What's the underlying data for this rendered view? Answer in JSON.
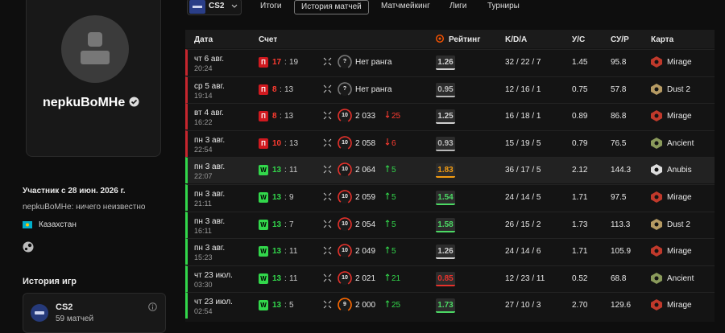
{
  "profile": {
    "nickname": "nepkuBoMHe",
    "member_since": "Участник с 28 июн. 2026 г.",
    "bio": "nepkuBoMHe: ничего неизвестно",
    "country": "Казахстан"
  },
  "game_history": {
    "title": "История игр",
    "game": "CS2",
    "matches": "59 матчей"
  },
  "nav": {
    "game": "CS2",
    "tabs": [
      "Итоги",
      "История матчей",
      "Матчмейкинг",
      "Лиги",
      "Турниры"
    ],
    "active_tab": 1
  },
  "table": {
    "headers": [
      "Дата",
      "Счет",
      "Рейтинг",
      "K/D/A",
      "У/С",
      "СУ/Р",
      "Карта"
    ],
    "rows": [
      {
        "win": false,
        "date": "чт 6 авг.",
        "time": "20:24",
        "result": "П",
        "own": "17",
        "sep": ":",
        "opp": "19",
        "level": "?",
        "level_color": "#777",
        "elo": "Нет ранга",
        "rating": "1.26",
        "rating_color": "#d0d0d0",
        "kda": "32 / 22 / 7",
        "kd": "1.45",
        "adr": "95.8",
        "map": "Mirage",
        "map_color": "#c0392b"
      },
      {
        "win": false,
        "date": "ср 5 авг.",
        "time": "19:14",
        "result": "П",
        "own": "8",
        "sep": ":",
        "opp": "13",
        "level": "?",
        "level_color": "#777",
        "elo": "Нет ранга",
        "rating": "0.95",
        "rating_color": "#b8b8b8",
        "kda": "12 / 16 / 1",
        "kd": "0.75",
        "adr": "57.8",
        "map": "Dust 2",
        "map_color": "#b59a63"
      },
      {
        "win": false,
        "date": "вт 4 авг.",
        "time": "16:22",
        "result": "П",
        "own": "8",
        "sep": ":",
        "opp": "13",
        "level": "10",
        "level_color": "#e5312b",
        "elo": "2 033",
        "change": "25",
        "rating": "1.25",
        "rating_color": "#d0d0d0",
        "kda": "16 / 18 / 1",
        "kd": "0.89",
        "adr": "86.8",
        "map": "Mirage",
        "map_color": "#c0392b"
      },
      {
        "win": false,
        "date": "пн 3 авг.",
        "time": "22:54",
        "result": "П",
        "own": "10",
        "sep": ":",
        "opp": "13",
        "level": "10",
        "level_color": "#e5312b",
        "elo": "2 058",
        "change": "6",
        "rating": "0.93",
        "rating_color": "#b8b8b8",
        "kda": "15 / 19 / 5",
        "kd": "0.79",
        "adr": "76.5",
        "map": "Ancient",
        "map_color": "#8a9a5b"
      },
      {
        "win": true,
        "date": "пн 3 авг.",
        "time": "22:07",
        "result": "W",
        "own": "13",
        "sep": ":",
        "opp": "11",
        "level": "10",
        "level_color": "#e5312b",
        "elo": "2 064",
        "change": "5",
        "rating": "1.83",
        "rating_color": "#f39c12",
        "kda": "36 / 17 / 5",
        "kd": "2.12",
        "adr": "144.3",
        "map": "Anubis",
        "map_color": "#dddddd"
      },
      {
        "win": true,
        "date": "пн 3 авг.",
        "time": "21:11",
        "result": "W",
        "own": "13",
        "sep": ":",
        "opp": "9",
        "level": "10",
        "level_color": "#e5312b",
        "elo": "2 059",
        "change": "5",
        "rating": "1.54",
        "rating_color": "#4cd964",
        "kda": "24 / 14 / 5",
        "kd": "1.71",
        "adr": "97.5",
        "map": "Mirage",
        "map_color": "#c0392b"
      },
      {
        "win": true,
        "date": "пн 3 авг.",
        "time": "16:11",
        "result": "W",
        "own": "13",
        "sep": ":",
        "opp": "7",
        "level": "10",
        "level_color": "#e5312b",
        "elo": "2 054",
        "change": "5",
        "rating": "1.58",
        "rating_color": "#4cd964",
        "kda": "26 / 15 / 2",
        "kd": "1.73",
        "adr": "113.3",
        "map": "Dust 2",
        "map_color": "#b59a63"
      },
      {
        "win": true,
        "date": "пн 3 авг.",
        "time": "15:23",
        "result": "W",
        "own": "13",
        "sep": ":",
        "opp": "11",
        "level": "10",
        "level_color": "#e5312b",
        "elo": "2 049",
        "change": "5",
        "rating": "1.26",
        "rating_color": "#d0d0d0",
        "kda": "24 / 14 / 6",
        "kd": "1.71",
        "adr": "105.9",
        "map": "Mirage",
        "map_color": "#c0392b"
      },
      {
        "win": true,
        "date": "чт 23 июл.",
        "time": "03:30",
        "result": "W",
        "own": "13",
        "sep": ":",
        "opp": "11",
        "level": "10",
        "level_color": "#e5312b",
        "elo": "2 021",
        "change": "21",
        "rating": "0.85",
        "rating_color": "#e5312b",
        "kda": "12 / 23 / 11",
        "kd": "0.52",
        "adr": "68.8",
        "map": "Ancient",
        "map_color": "#8a9a5b"
      },
      {
        "win": true,
        "date": "чт 23 июл.",
        "time": "02:54",
        "result": "W",
        "own": "13",
        "sep": ":",
        "opp": "5",
        "level": "9",
        "level_color": "#ff6a00",
        "elo": "2 000",
        "change": "25",
        "rating": "1.73",
        "rating_color": "#4cd964",
        "kda": "27 / 10 / 3",
        "kd": "2.70",
        "adr": "129.6",
        "map": "Mirage",
        "map_color": "#c0392b"
      }
    ]
  }
}
